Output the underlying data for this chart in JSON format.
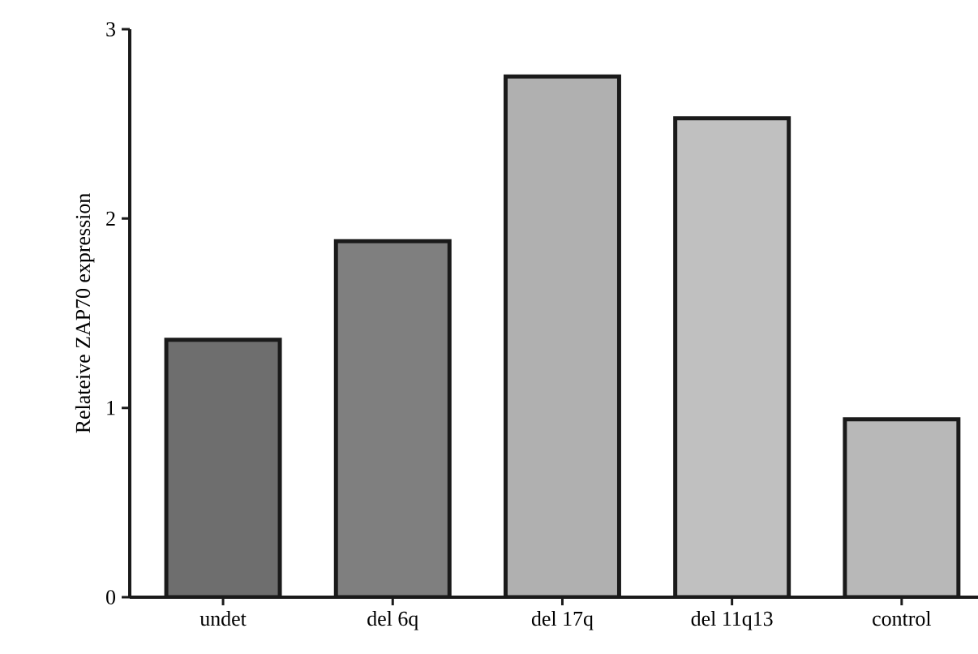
{
  "chart_data": {
    "type": "bar",
    "ylabel": "Relateive ZAP70 expression",
    "categories": [
      "undet",
      "del 6q",
      "del 17q",
      "del 11q13",
      "control"
    ],
    "values": [
      1.36,
      1.88,
      2.75,
      2.53,
      0.94
    ],
    "colors": [
      "#6e6e6e",
      "#7f7f7f",
      "#b0b0b0",
      "#c0c0c0",
      "#b8b8b8"
    ],
    "ylim": [
      0,
      3
    ],
    "yticks": [
      0,
      1,
      2,
      3
    ],
    "grid": false
  }
}
